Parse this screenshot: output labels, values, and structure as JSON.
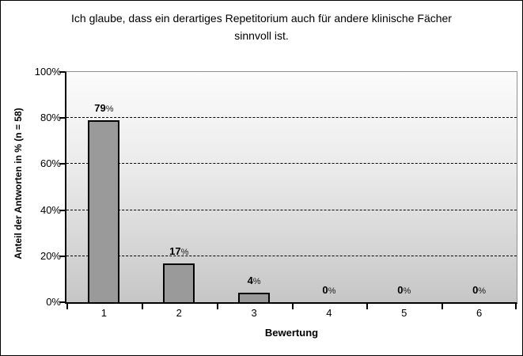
{
  "frame": {
    "bg": "#ffffff",
    "border_color": "#000000"
  },
  "chart_data": {
    "type": "bar",
    "title": "Ich glaube, dass ein derartiges Repetitorium auch für andere klinische Fächer sinnvoll ist.",
    "xlabel": "Bewertung",
    "ylabel": "Anteil der Antworten in % (n = 58)",
    "categories": [
      "1",
      "2",
      "3",
      "4",
      "5",
      "6"
    ],
    "values": [
      79,
      17,
      4,
      0,
      0,
      0
    ],
    "value_labels": [
      "79",
      "17",
      "4",
      "0",
      "0",
      "0"
    ],
    "percent_suffix": "%",
    "ylim": [
      0,
      100
    ],
    "yticks": [
      {
        "label": "0%",
        "value": 0
      },
      {
        "label": "20%",
        "value": 20
      },
      {
        "label": "40%",
        "value": 40
      },
      {
        "label": "60%",
        "value": 60
      },
      {
        "label": "80%",
        "value": 80
      },
      {
        "label": "100%",
        "value": 100
      }
    ],
    "grid_values": [
      20,
      40,
      60,
      80
    ],
    "grid_style": "dashed",
    "legend": "none",
    "colors": {
      "bar_fill": "#9a9a9a",
      "bar_border": "#000000",
      "plot_bg_top": "#fcfcfc",
      "plot_bg_bottom": "#c6c6c6",
      "plot_border": "#909090",
      "axis": "#000000",
      "grid": "#000000",
      "text": "#000000"
    }
  }
}
